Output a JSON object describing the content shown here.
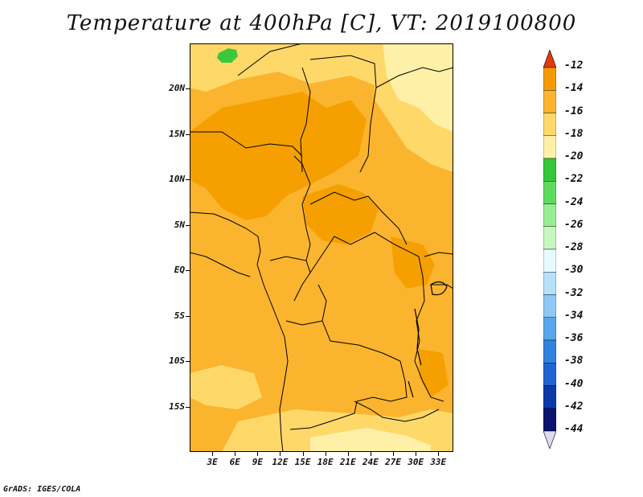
{
  "title": "Temperature at 400hPa [C], VT: 2019100800",
  "credit": "GrADS: IGES/COLA",
  "map": {
    "region": "Central Africa",
    "lon_range": [
      0,
      35
    ],
    "lat_range": [
      -20,
      25
    ],
    "y_ticks": [
      {
        "label": "20N",
        "lat": 20
      },
      {
        "label": "15N",
        "lat": 15
      },
      {
        "label": "10N",
        "lat": 10
      },
      {
        "label": "5N",
        "lat": 5
      },
      {
        "label": "EQ",
        "lat": 0
      },
      {
        "label": "5S",
        "lat": -5
      },
      {
        "label": "10S",
        "lat": -10
      },
      {
        "label": "15S",
        "lat": -15
      }
    ],
    "x_ticks": [
      {
        "label": "3E",
        "lon": 3
      },
      {
        "label": "6E",
        "lon": 6
      },
      {
        "label": "9E",
        "lon": 9
      },
      {
        "label": "12E",
        "lon": 12
      },
      {
        "label": "15E",
        "lon": 15
      },
      {
        "label": "18E",
        "lon": 18
      },
      {
        "label": "21E",
        "lon": 21
      },
      {
        "label": "24E",
        "lon": 24
      },
      {
        "label": "27E",
        "lon": 27
      },
      {
        "label": "30E",
        "lon": 30
      },
      {
        "label": "33E",
        "lon": 33
      }
    ]
  },
  "colorbar": {
    "levels": [
      {
        "label": "-12",
        "color": "#f06000"
      },
      {
        "label": "-14",
        "color": "#f59a00"
      },
      {
        "label": "-16",
        "color": "#fbb42e"
      },
      {
        "label": "-18",
        "color": "#ffd86a"
      },
      {
        "label": "-20",
        "color": "#fff0a8"
      },
      {
        "label": "-22",
        "color": "#34c73a"
      },
      {
        "label": "-24",
        "color": "#5edb5e"
      },
      {
        "label": "-26",
        "color": "#97ee91"
      },
      {
        "label": "-28",
        "color": "#c8f6c0"
      },
      {
        "label": "-30",
        "color": "#e6fbff"
      },
      {
        "label": "-32",
        "color": "#b4e0fa"
      },
      {
        "label": "-34",
        "color": "#8ec8f4"
      },
      {
        "label": "-36",
        "color": "#5aa6ec"
      },
      {
        "label": "-38",
        "color": "#2f82e0"
      },
      {
        "label": "-40",
        "color": "#1f64d2"
      },
      {
        "label": "-42",
        "color": "#0b3aa8"
      },
      {
        "label": "-44",
        "color": "#0a136e"
      }
    ],
    "top_arrow_color": "#e43a0a",
    "bottom_arrow_color": "#dcdcf2"
  },
  "colors": {
    "warm_dark": "#f5a000",
    "warm_mid": "#fbb42e",
    "warm_light": "#ffd86a",
    "warm_pale": "#fff0a8",
    "green_patch": "#3cc83c"
  }
}
